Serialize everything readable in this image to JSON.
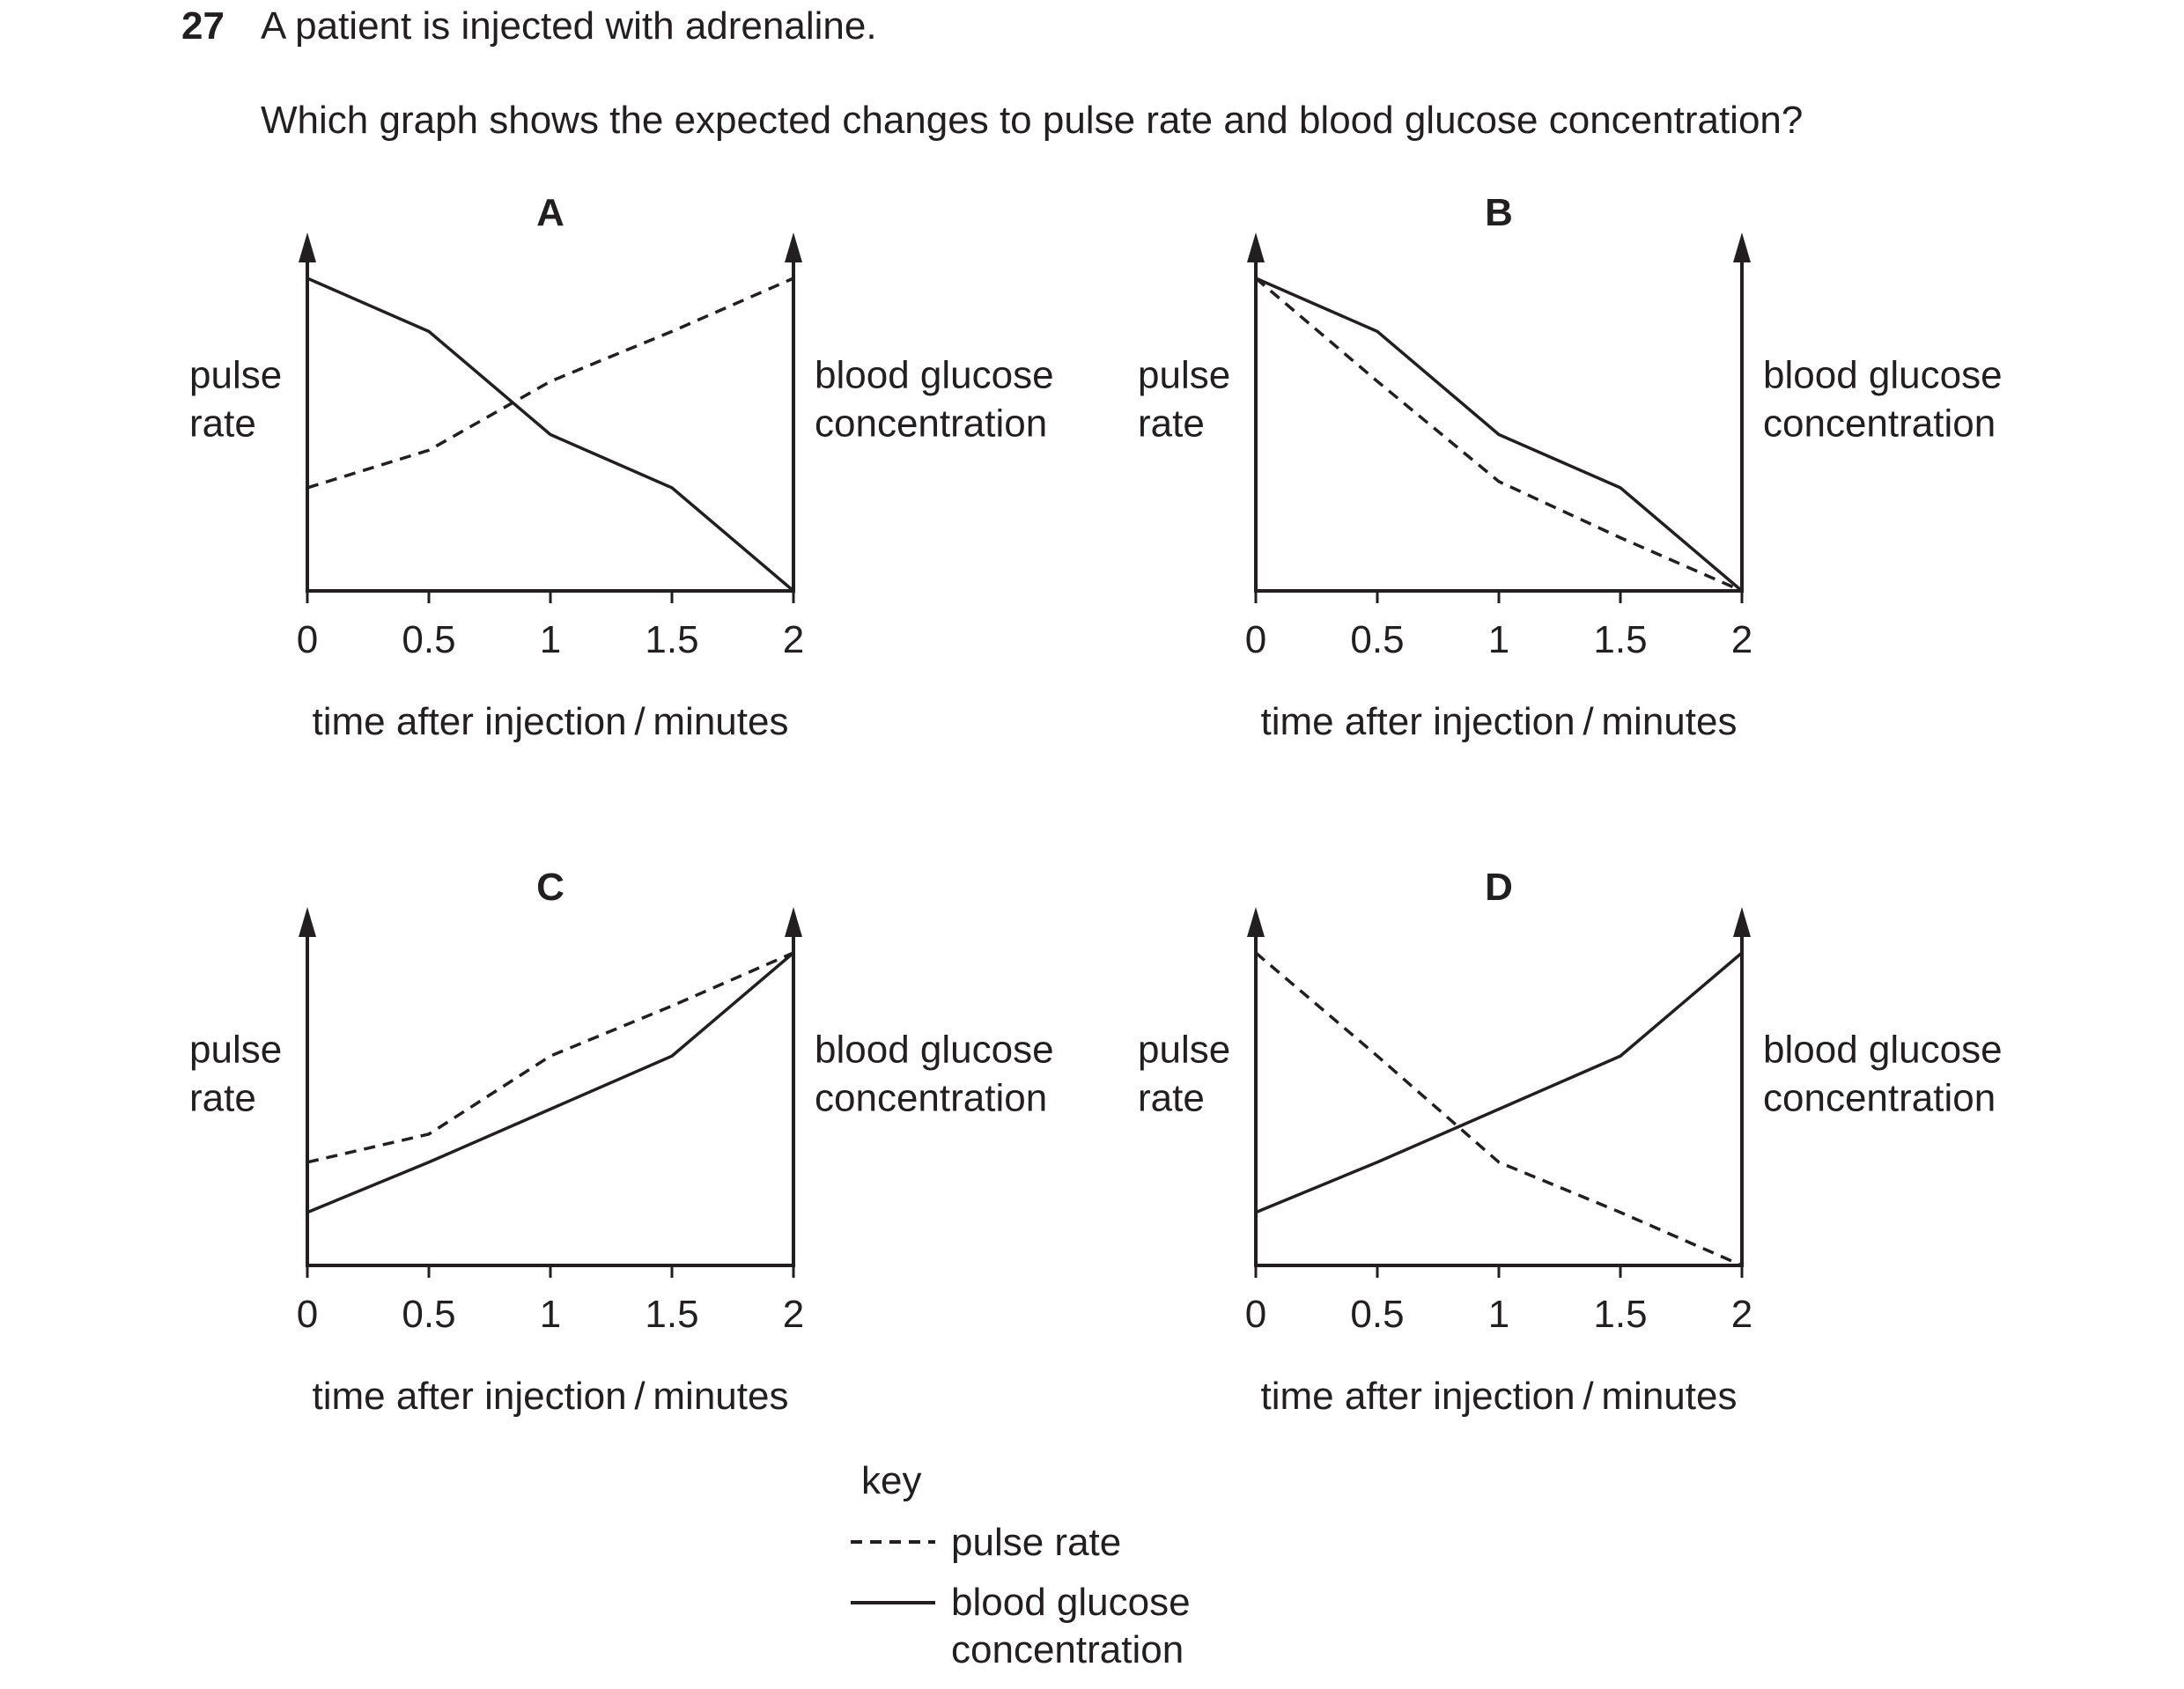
{
  "question": {
    "number": "27",
    "stem": "A patient is injected with adrenaline.",
    "prompt": "Which graph shows the expected changes to pulse rate and blood glucose concentration?"
  },
  "chart_data": [
    {
      "type": "line",
      "panel_label": "A",
      "xlabel": "time after injection / minutes",
      "ylabel_left": [
        "pulse",
        "rate"
      ],
      "ylabel_right": [
        "blood glucose",
        "concentration"
      ],
      "x_ticks": [
        "0",
        "0.5",
        "1",
        "1.5",
        "2"
      ],
      "x": [
        0,
        0.5,
        1,
        1.5,
        2
      ],
      "xlim": [
        0,
        2
      ],
      "ylim": [
        0,
        1
      ],
      "series": [
        {
          "name": "pulse rate",
          "style": "dashed",
          "values": [
            0.33,
            0.45,
            0.67,
            0.83,
            1.0
          ]
        },
        {
          "name": "blood glucose concentration",
          "style": "solid",
          "values": [
            1.0,
            0.83,
            0.5,
            0.33,
            0.0
          ]
        }
      ]
    },
    {
      "type": "line",
      "panel_label": "B",
      "xlabel": "time after injection / minutes",
      "ylabel_left": [
        "pulse",
        "rate"
      ],
      "ylabel_right": [
        "blood glucose",
        "concentration"
      ],
      "x_ticks": [
        "0",
        "0.5",
        "1",
        "1.5",
        "2"
      ],
      "x": [
        0,
        0.5,
        1,
        1.5,
        2
      ],
      "xlim": [
        0,
        2
      ],
      "ylim": [
        0,
        1
      ],
      "series": [
        {
          "name": "pulse rate",
          "style": "dashed",
          "values": [
            1.0,
            0.67,
            0.35,
            0.17,
            0.0
          ]
        },
        {
          "name": "blood glucose concentration",
          "style": "solid",
          "values": [
            1.0,
            0.83,
            0.5,
            0.33,
            0.0
          ]
        }
      ]
    },
    {
      "type": "line",
      "panel_label": "C",
      "xlabel": "time after injection / minutes",
      "ylabel_left": [
        "pulse",
        "rate"
      ],
      "ylabel_right": [
        "blood glucose",
        "concentration"
      ],
      "x_ticks": [
        "0",
        "0.5",
        "1",
        "1.5",
        "2"
      ],
      "x": [
        0,
        0.5,
        1,
        1.5,
        2
      ],
      "xlim": [
        0,
        2
      ],
      "ylim": [
        0,
        1
      ],
      "series": [
        {
          "name": "pulse rate",
          "style": "dashed",
          "values": [
            0.33,
            0.42,
            0.67,
            0.83,
            1.0
          ]
        },
        {
          "name": "blood glucose concentration",
          "style": "solid",
          "values": [
            0.17,
            0.33,
            0.5,
            0.67,
            1.0
          ]
        }
      ]
    },
    {
      "type": "line",
      "panel_label": "D",
      "xlabel": "time after injection / minutes",
      "ylabel_left": [
        "pulse",
        "rate"
      ],
      "ylabel_right": [
        "blood glucose",
        "concentration"
      ],
      "x_ticks": [
        "0",
        "0.5",
        "1",
        "1.5",
        "2"
      ],
      "x": [
        0,
        0.5,
        1,
        1.5,
        2
      ],
      "xlim": [
        0,
        2
      ],
      "ylim": [
        0,
        1
      ],
      "series": [
        {
          "name": "pulse rate",
          "style": "dashed",
          "values": [
            1.0,
            0.67,
            0.33,
            0.17,
            0.0
          ]
        },
        {
          "name": "blood glucose concentration",
          "style": "solid",
          "values": [
            0.17,
            0.33,
            0.5,
            0.67,
            1.0
          ]
        }
      ]
    }
  ],
  "key": {
    "title": "key",
    "pulse_label": "pulse rate",
    "glucose_label": [
      "blood glucose",
      "concentration"
    ]
  },
  "colors": {
    "ink": "#231f20",
    "background": "#ffffff"
  }
}
